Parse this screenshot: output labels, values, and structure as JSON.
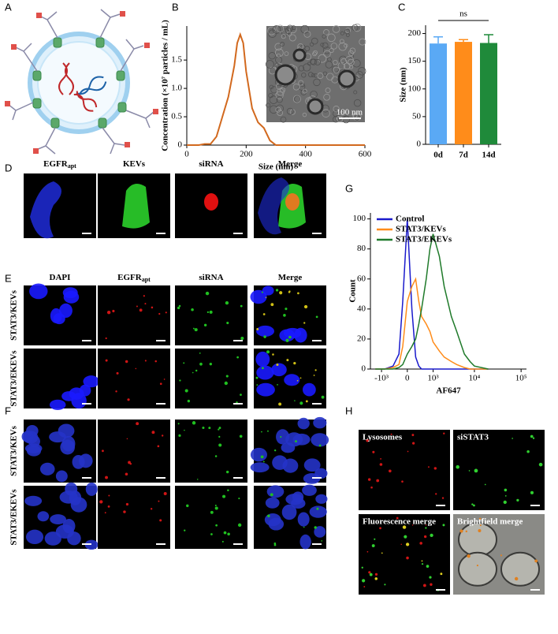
{
  "figure": {
    "labels": [
      "A",
      "B",
      "C",
      "D",
      "E",
      "F",
      "G",
      "H"
    ]
  },
  "panel_d": {
    "headers": [
      {
        "text": "EGFR",
        "sub": "apt"
      },
      {
        "text": "KEVs"
      },
      {
        "text": "siRNA"
      },
      {
        "text": "Merge"
      }
    ]
  },
  "panel_e": {
    "headers": [
      {
        "text": "DAPI"
      },
      {
        "text": "EGFR",
        "sub": "apt"
      },
      {
        "text": "siRNA"
      },
      {
        "text": "Merge"
      }
    ],
    "rows": [
      "STAT3/KEVs",
      "STAT3/EKEVs"
    ]
  },
  "panel_f": {
    "rows": [
      "STAT3/KEVs",
      "STAT3/EKEVs"
    ]
  },
  "panel_h": {
    "tiles": [
      "Lysosomes",
      "siSTAT3",
      "Fluorescence merge",
      "Brightfield merge"
    ]
  },
  "chart_data": [
    {
      "type": "line",
      "xlabel": "Size (nm)",
      "ylabel": "Concentration (×10⁷ particles / mL)",
      "inset_scale_label": "100 nm",
      "x": [
        0,
        40,
        60,
        80,
        100,
        120,
        140,
        160,
        170,
        180,
        190,
        200,
        220,
        240,
        260,
        280,
        300,
        350,
        600
      ],
      "values": [
        0,
        0,
        0.02,
        0.02,
        0.15,
        0.5,
        0.85,
        1.4,
        1.8,
        1.95,
        1.8,
        1.3,
        0.65,
        0.4,
        0.3,
        0.08,
        0,
        0,
        0
      ],
      "color": "#d2691e",
      "xlim": [
        0,
        600
      ],
      "xticks": [
        0,
        200,
        400,
        600
      ],
      "ylim": [
        0,
        2.1
      ],
      "yticks": [
        0,
        0.5,
        {
          "value": 1,
          "label": "1.0"
        },
        1.5
      ]
    },
    {
      "type": "bar",
      "ylabel": "Size (nm)",
      "annotation": "ns",
      "categories": [
        "0d",
        "7d",
        "14d"
      ],
      "values": [
        182,
        185,
        183
      ],
      "errors": [
        12,
        4,
        15
      ],
      "colors": [
        "#5aa9f5",
        "#ff8c1a",
        "#1f8a3a"
      ],
      "ylim": [
        0,
        215
      ],
      "yticks": [
        0,
        50,
        100,
        150,
        200
      ]
    },
    {
      "type": "line",
      "xlabel": "AF647",
      "ylabel": "Count",
      "xscale": "biexponential",
      "legend": "upper left",
      "x": [
        -1500,
        -800,
        -400,
        -200,
        -100,
        0,
        100,
        200,
        300,
        400,
        600,
        800,
        1000,
        1500,
        2000,
        3000,
        4000,
        6000,
        8000,
        10000,
        20000
      ],
      "series": [
        {
          "name": "Control",
          "color": "#1a1acc",
          "values": [
            0,
            0,
            2,
            10,
            45,
            100,
            40,
            8,
            2,
            0,
            0,
            0,
            0,
            0,
            0,
            0,
            0,
            0,
            0,
            0,
            0
          ]
        },
        {
          "name": "STAT3/KEVs",
          "color": "#ff8c1a",
          "values": [
            0,
            0,
            1,
            3,
            15,
            45,
            55,
            60,
            45,
            35,
            30,
            25,
            18,
            12,
            8,
            5,
            3,
            1,
            0,
            0,
            0
          ]
        },
        {
          "name": "STAT3/EKEVs",
          "color": "#1f7a2a",
          "values": [
            0,
            0,
            0,
            1,
            3,
            10,
            15,
            20,
            30,
            40,
            60,
            80,
            90,
            75,
            55,
            35,
            25,
            10,
            5,
            2,
            0
          ]
        }
      ],
      "xlim": [
        -2000,
        130000
      ],
      "xticks": [
        {
          "value": -1000,
          "label": "-10³"
        },
        0,
        {
          "value": 1000,
          "label": "10³"
        },
        {
          "value": 10000,
          "label": "10⁴"
        },
        {
          "value": 100000,
          "label": "10⁵"
        }
      ],
      "ylim": [
        0,
        104
      ],
      "yticks": [
        0,
        20,
        40,
        60,
        80,
        100
      ]
    }
  ]
}
